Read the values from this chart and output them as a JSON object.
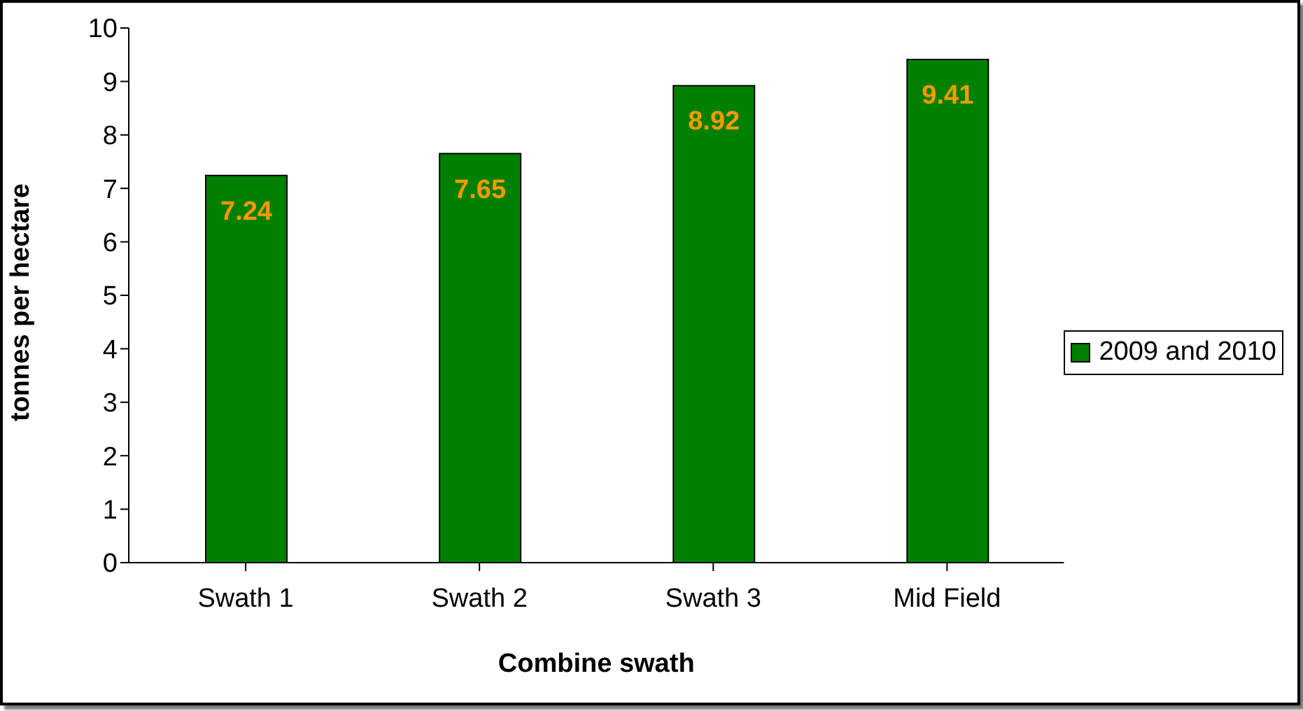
{
  "chart_data": {
    "type": "bar",
    "xlabel": "Combine swath",
    "ylabel": "tonnes per hectare",
    "categories": [
      "Swath 1",
      "Swath 2",
      "Swath 3",
      "Mid Field"
    ],
    "series": [
      {
        "name": "2009 and 2010",
        "color": "#008000",
        "values": [
          7.24,
          7.65,
          8.92,
          9.41
        ]
      }
    ],
    "ylim": [
      0,
      10
    ],
    "yticks": [
      0,
      1,
      2,
      3,
      4,
      5,
      6,
      7,
      8,
      9,
      10
    ],
    "grid": false,
    "legend": "right",
    "data_labels": true
  }
}
